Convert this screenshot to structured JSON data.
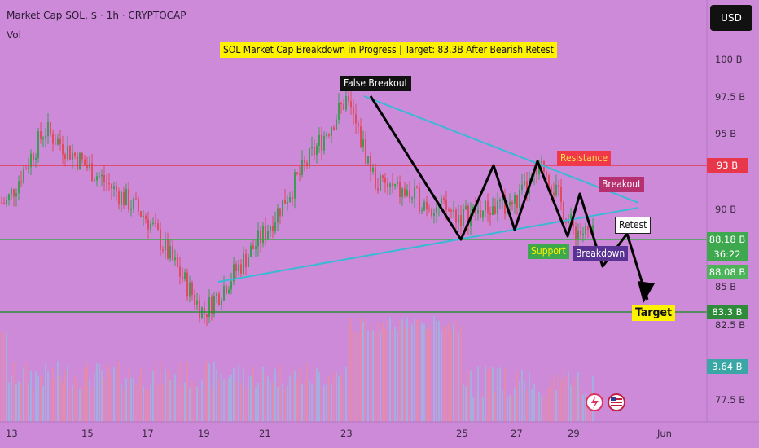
{
  "header": {
    "symbol_line": "Market Cap SOL, $ · 1h · CRYPTOCAP",
    "volume_label": "Vol",
    "currency_button": "USD"
  },
  "chart_data": {
    "type": "candlestick",
    "title": "SOL Market Cap Breakdown in Progress | Target: 83.3B After Bearish Retest",
    "y_unit": "B USD",
    "ylim": [
      76,
      103
    ],
    "y_ticks": [
      "100 B",
      "97.5 B",
      "95 B",
      "90 B",
      "85 B",
      "82.5 B",
      "77.5 B"
    ],
    "x_ticks": [
      "13",
      "15",
      "17",
      "19",
      "21",
      "23",
      "25",
      "27",
      "29",
      "Jun"
    ],
    "grid": false,
    "price_levels": {
      "resistance": {
        "value": 93,
        "label": "93 B",
        "color": "#e8364a"
      },
      "current": {
        "value": 88.18,
        "label": "88.18 B",
        "countdown": "36:22",
        "color": "#3ea84f"
      },
      "previous_close": {
        "value": 88.08,
        "label": "88.08 B",
        "color": "#3ea84f"
      },
      "target": {
        "value": 83.3,
        "label": "83.3 B",
        "color": "#2e8b3a"
      },
      "volume": {
        "label": "3.64 B",
        "color": "#3aa6a6"
      }
    },
    "annotations": [
      {
        "text": "False Breakout",
        "style": "dark"
      },
      {
        "text": "Resistance",
        "style": "red"
      },
      {
        "text": "Breakout",
        "style": "magenta"
      },
      {
        "text": "Retest",
        "style": "white"
      },
      {
        "text": "Support",
        "style": "green"
      },
      {
        "text": "Breakdown",
        "style": "purple"
      },
      {
        "text": "Target",
        "style": "yellow"
      }
    ],
    "key_points": [
      {
        "date": "May 13",
        "value": 90.5
      },
      {
        "date": "May 14",
        "value": 95.3
      },
      {
        "date": "May 17",
        "value": 89.5
      },
      {
        "date": "May 19",
        "value": 83.2
      },
      {
        "date": "May 21",
        "value": 88.5
      },
      {
        "date": "May 22",
        "value": 92.5
      },
      {
        "date": "May 23",
        "value": 97.3
      },
      {
        "date": "May 24",
        "value": 91.8
      },
      {
        "date": "May 25",
        "value": 89.6
      },
      {
        "date": "May 27",
        "value": 90.5
      },
      {
        "date": "May 28",
        "value": 92.9
      },
      {
        "date": "May 29",
        "value": 88.8
      },
      {
        "date": "May 29",
        "value": 88.18
      }
    ],
    "colors": {
      "up": "#3e9a55",
      "down": "#e04b5e",
      "trend_lines": "#39b9d4",
      "projection": "#000000",
      "background": "#cc8ad9"
    }
  }
}
